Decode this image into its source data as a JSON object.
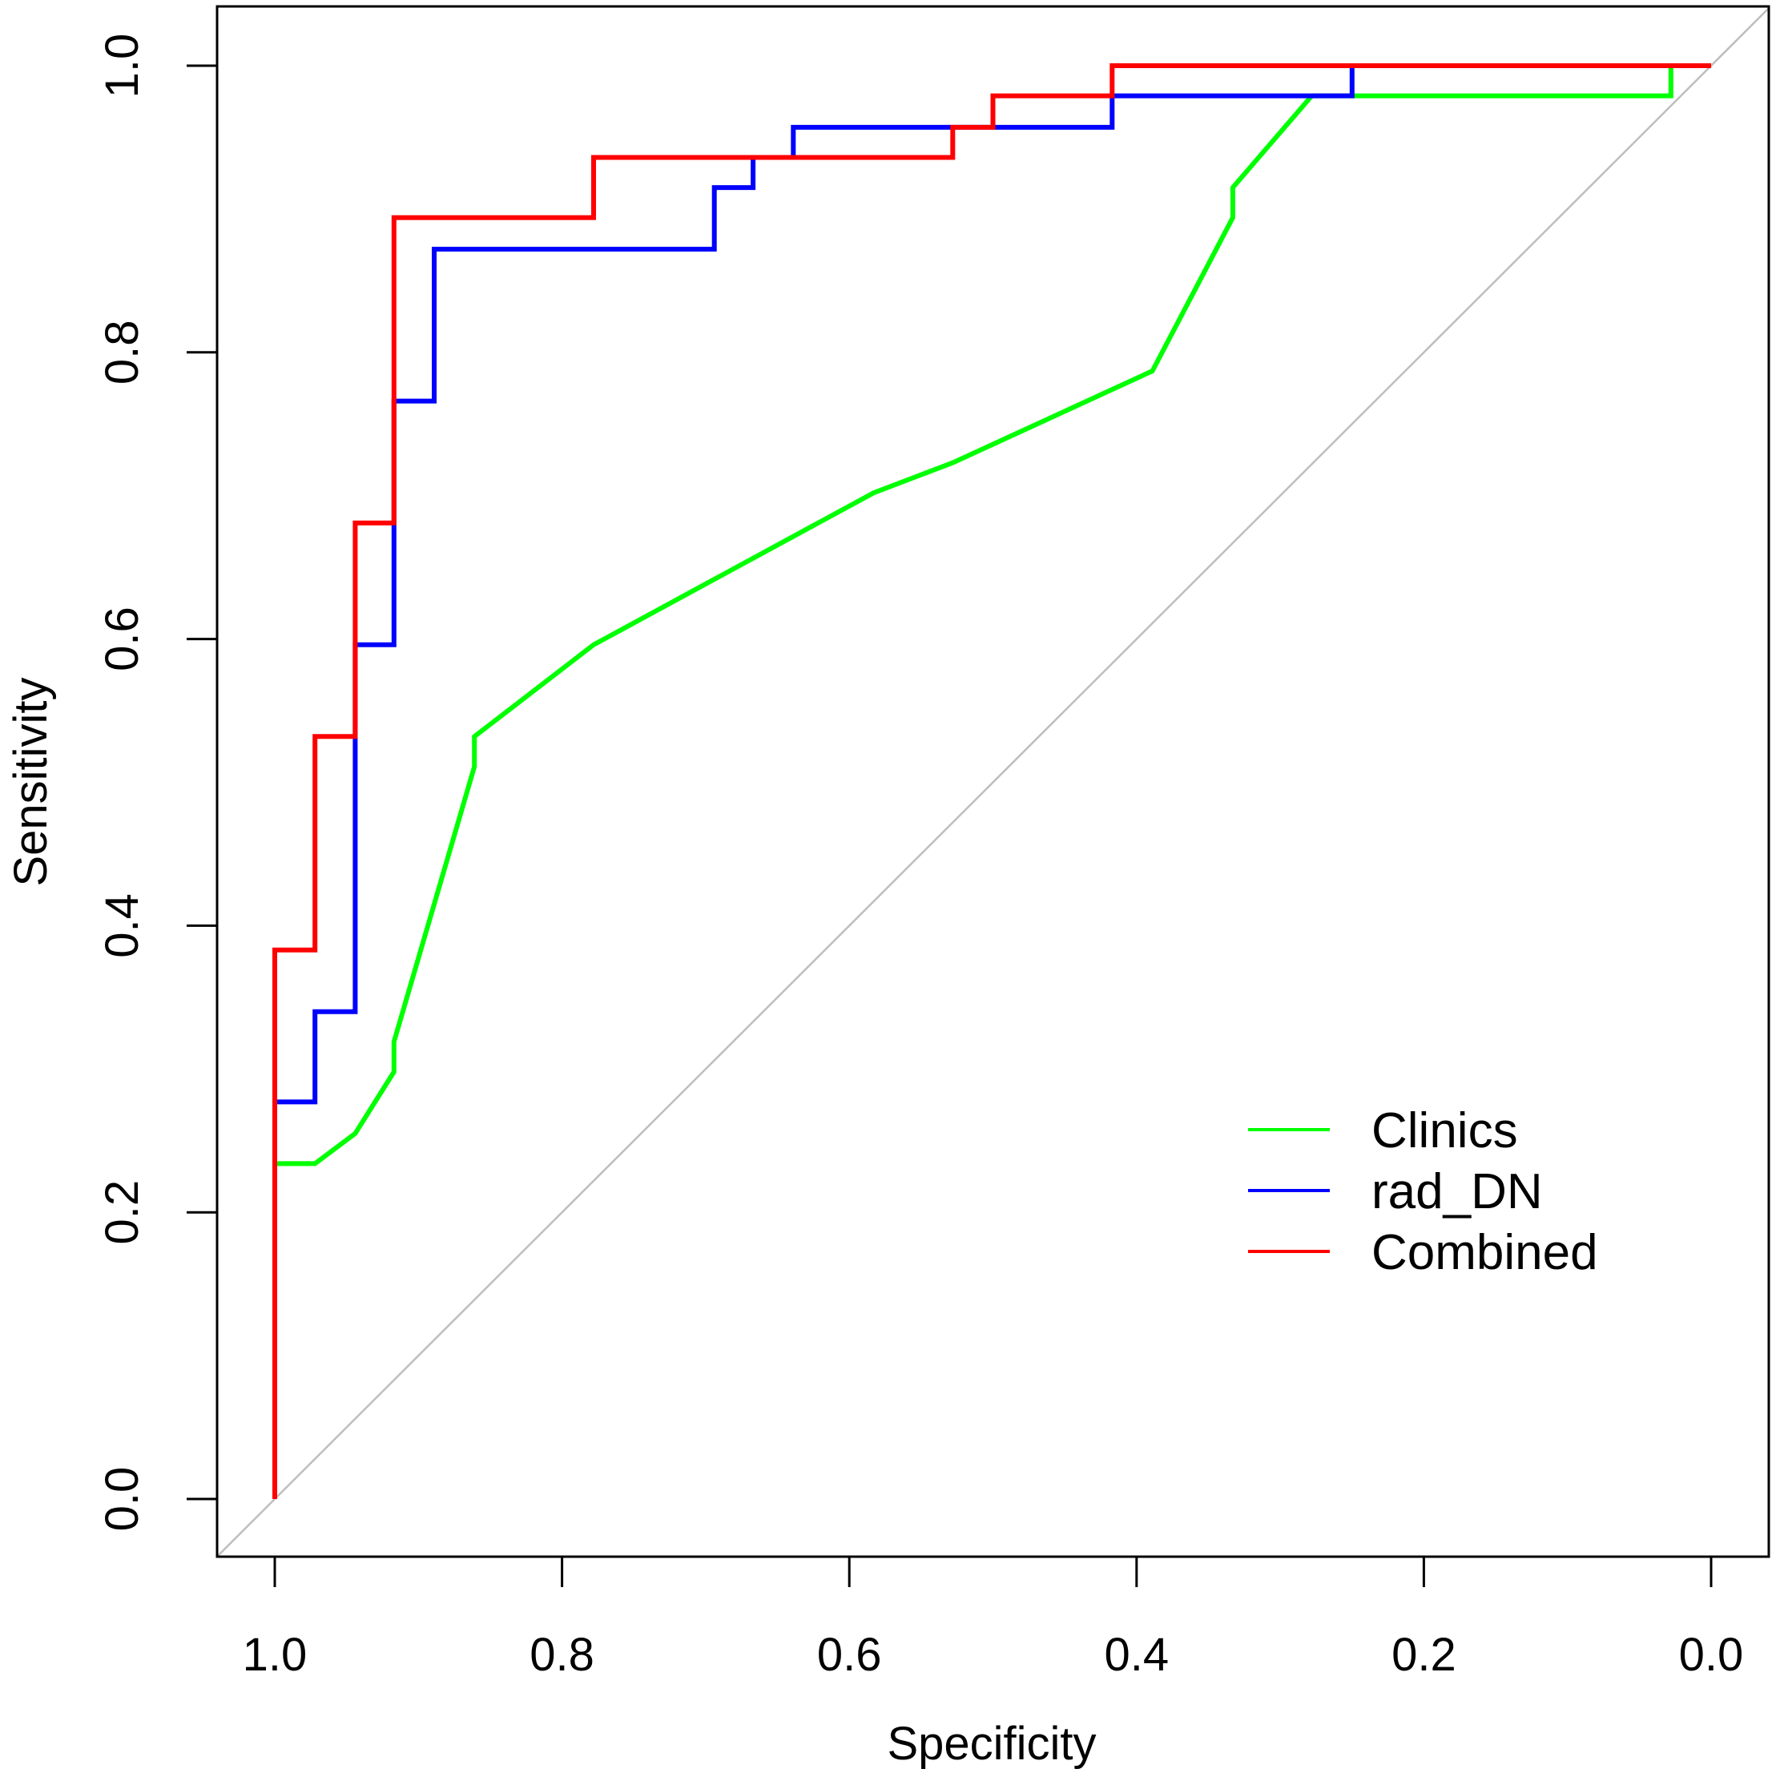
{
  "chart_data": {
    "type": "line",
    "title": "",
    "xlabel": "Specificity",
    "ylabel": "Sensitivity",
    "xlim": [
      1.0,
      0.0
    ],
    "ylim": [
      0.0,
      1.0
    ],
    "x_reversed": true,
    "grid": false,
    "legend_position": "bottom-right",
    "x_ticks": [
      "1.0",
      "0.8",
      "0.6",
      "0.4",
      "0.2",
      "0.0"
    ],
    "x_tick_values": [
      1.0,
      0.8,
      0.6,
      0.4,
      0.2,
      0.0
    ],
    "y_ticks": [
      "0.0",
      "0.2",
      "0.4",
      "0.6",
      "0.8",
      "1.0"
    ],
    "y_tick_values": [
      0.0,
      0.2,
      0.4,
      0.6,
      0.8,
      1.0
    ],
    "reference_line": {
      "name": "chance",
      "color": "#BEBEBE",
      "points": [
        [
          1.0,
          0.0
        ],
        [
          0.0,
          1.0
        ]
      ]
    },
    "series": [
      {
        "name": "Clinics",
        "color": "#00FF00",
        "specificity": [
          1.0,
          1.0,
          0.972,
          0.944,
          0.917,
          0.917,
          0.861,
          0.861,
          0.778,
          0.583,
          0.528,
          0.389,
          0.333,
          0.333,
          0.278,
          0.028,
          0.028,
          0.0
        ],
        "sensitivity": [
          0.0,
          0.234,
          0.234,
          0.255,
          0.298,
          0.319,
          0.511,
          0.532,
          0.596,
          0.702,
          0.723,
          0.787,
          0.894,
          0.915,
          0.979,
          0.979,
          1.0,
          1.0
        ]
      },
      {
        "name": "rad_DN",
        "color": "#0000FF",
        "specificity": [
          1.0,
          1.0,
          0.972,
          0.972,
          0.944,
          0.944,
          0.917,
          0.917,
          0.889,
          0.889,
          0.694,
          0.694,
          0.667,
          0.667,
          0.639,
          0.639,
          0.417,
          0.417,
          0.25,
          0.25,
          0.0
        ],
        "sensitivity": [
          0.0,
          0.277,
          0.277,
          0.34,
          0.34,
          0.596,
          0.596,
          0.766,
          0.766,
          0.872,
          0.872,
          0.915,
          0.915,
          0.936,
          0.936,
          0.957,
          0.957,
          0.979,
          0.979,
          1.0,
          1.0
        ]
      },
      {
        "name": "Combined",
        "color": "#FF0000",
        "specificity": [
          1.0,
          1.0,
          0.972,
          0.972,
          0.944,
          0.944,
          0.917,
          0.917,
          0.778,
          0.778,
          0.528,
          0.528,
          0.5,
          0.5,
          0.417,
          0.417,
          0.0
        ],
        "sensitivity": [
          0.0,
          0.383,
          0.383,
          0.532,
          0.532,
          0.681,
          0.681,
          0.894,
          0.894,
          0.936,
          0.936,
          0.957,
          0.957,
          0.979,
          0.979,
          1.0,
          1.0
        ]
      }
    ]
  }
}
